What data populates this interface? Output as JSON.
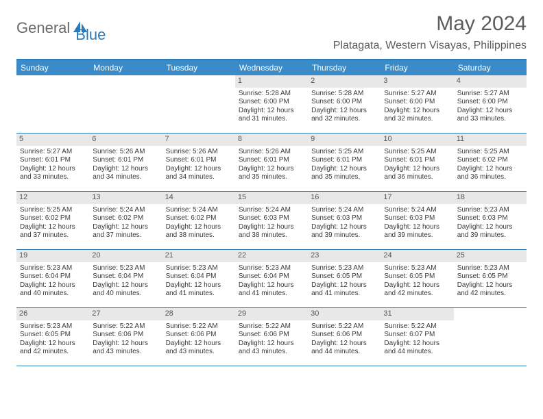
{
  "logo": {
    "part1": "General",
    "part2": "Blue"
  },
  "title": "May 2024",
  "location": "Platagata, Western Visayas, Philippines",
  "colors": {
    "brand_blue": "#2a7ab9",
    "header_blue": "#3b8bc8",
    "daynum_bg": "#e8e8e8",
    "text_gray": "#5c5c5c"
  },
  "weekdays": [
    "Sunday",
    "Monday",
    "Tuesday",
    "Wednesday",
    "Thursday",
    "Friday",
    "Saturday"
  ],
  "weeks": [
    [
      null,
      null,
      null,
      {
        "n": "1",
        "sr": "Sunrise: 5:28 AM",
        "ss": "Sunset: 6:00 PM",
        "d1": "Daylight: 12 hours",
        "d2": "and 31 minutes."
      },
      {
        "n": "2",
        "sr": "Sunrise: 5:28 AM",
        "ss": "Sunset: 6:00 PM",
        "d1": "Daylight: 12 hours",
        "d2": "and 32 minutes."
      },
      {
        "n": "3",
        "sr": "Sunrise: 5:27 AM",
        "ss": "Sunset: 6:00 PM",
        "d1": "Daylight: 12 hours",
        "d2": "and 32 minutes."
      },
      {
        "n": "4",
        "sr": "Sunrise: 5:27 AM",
        "ss": "Sunset: 6:00 PM",
        "d1": "Daylight: 12 hours",
        "d2": "and 33 minutes."
      }
    ],
    [
      {
        "n": "5",
        "sr": "Sunrise: 5:27 AM",
        "ss": "Sunset: 6:01 PM",
        "d1": "Daylight: 12 hours",
        "d2": "and 33 minutes."
      },
      {
        "n": "6",
        "sr": "Sunrise: 5:26 AM",
        "ss": "Sunset: 6:01 PM",
        "d1": "Daylight: 12 hours",
        "d2": "and 34 minutes."
      },
      {
        "n": "7",
        "sr": "Sunrise: 5:26 AM",
        "ss": "Sunset: 6:01 PM",
        "d1": "Daylight: 12 hours",
        "d2": "and 34 minutes."
      },
      {
        "n": "8",
        "sr": "Sunrise: 5:26 AM",
        "ss": "Sunset: 6:01 PM",
        "d1": "Daylight: 12 hours",
        "d2": "and 35 minutes."
      },
      {
        "n": "9",
        "sr": "Sunrise: 5:25 AM",
        "ss": "Sunset: 6:01 PM",
        "d1": "Daylight: 12 hours",
        "d2": "and 35 minutes."
      },
      {
        "n": "10",
        "sr": "Sunrise: 5:25 AM",
        "ss": "Sunset: 6:01 PM",
        "d1": "Daylight: 12 hours",
        "d2": "and 36 minutes."
      },
      {
        "n": "11",
        "sr": "Sunrise: 5:25 AM",
        "ss": "Sunset: 6:02 PM",
        "d1": "Daylight: 12 hours",
        "d2": "and 36 minutes."
      }
    ],
    [
      {
        "n": "12",
        "sr": "Sunrise: 5:25 AM",
        "ss": "Sunset: 6:02 PM",
        "d1": "Daylight: 12 hours",
        "d2": "and 37 minutes."
      },
      {
        "n": "13",
        "sr": "Sunrise: 5:24 AM",
        "ss": "Sunset: 6:02 PM",
        "d1": "Daylight: 12 hours",
        "d2": "and 37 minutes."
      },
      {
        "n": "14",
        "sr": "Sunrise: 5:24 AM",
        "ss": "Sunset: 6:02 PM",
        "d1": "Daylight: 12 hours",
        "d2": "and 38 minutes."
      },
      {
        "n": "15",
        "sr": "Sunrise: 5:24 AM",
        "ss": "Sunset: 6:03 PM",
        "d1": "Daylight: 12 hours",
        "d2": "and 38 minutes."
      },
      {
        "n": "16",
        "sr": "Sunrise: 5:24 AM",
        "ss": "Sunset: 6:03 PM",
        "d1": "Daylight: 12 hours",
        "d2": "and 39 minutes."
      },
      {
        "n": "17",
        "sr": "Sunrise: 5:24 AM",
        "ss": "Sunset: 6:03 PM",
        "d1": "Daylight: 12 hours",
        "d2": "and 39 minutes."
      },
      {
        "n": "18",
        "sr": "Sunrise: 5:23 AM",
        "ss": "Sunset: 6:03 PM",
        "d1": "Daylight: 12 hours",
        "d2": "and 39 minutes."
      }
    ],
    [
      {
        "n": "19",
        "sr": "Sunrise: 5:23 AM",
        "ss": "Sunset: 6:04 PM",
        "d1": "Daylight: 12 hours",
        "d2": "and 40 minutes."
      },
      {
        "n": "20",
        "sr": "Sunrise: 5:23 AM",
        "ss": "Sunset: 6:04 PM",
        "d1": "Daylight: 12 hours",
        "d2": "and 40 minutes."
      },
      {
        "n": "21",
        "sr": "Sunrise: 5:23 AM",
        "ss": "Sunset: 6:04 PM",
        "d1": "Daylight: 12 hours",
        "d2": "and 41 minutes."
      },
      {
        "n": "22",
        "sr": "Sunrise: 5:23 AM",
        "ss": "Sunset: 6:04 PM",
        "d1": "Daylight: 12 hours",
        "d2": "and 41 minutes."
      },
      {
        "n": "23",
        "sr": "Sunrise: 5:23 AM",
        "ss": "Sunset: 6:05 PM",
        "d1": "Daylight: 12 hours",
        "d2": "and 41 minutes."
      },
      {
        "n": "24",
        "sr": "Sunrise: 5:23 AM",
        "ss": "Sunset: 6:05 PM",
        "d1": "Daylight: 12 hours",
        "d2": "and 42 minutes."
      },
      {
        "n": "25",
        "sr": "Sunrise: 5:23 AM",
        "ss": "Sunset: 6:05 PM",
        "d1": "Daylight: 12 hours",
        "d2": "and 42 minutes."
      }
    ],
    [
      {
        "n": "26",
        "sr": "Sunrise: 5:23 AM",
        "ss": "Sunset: 6:05 PM",
        "d1": "Daylight: 12 hours",
        "d2": "and 42 minutes."
      },
      {
        "n": "27",
        "sr": "Sunrise: 5:22 AM",
        "ss": "Sunset: 6:06 PM",
        "d1": "Daylight: 12 hours",
        "d2": "and 43 minutes."
      },
      {
        "n": "28",
        "sr": "Sunrise: 5:22 AM",
        "ss": "Sunset: 6:06 PM",
        "d1": "Daylight: 12 hours",
        "d2": "and 43 minutes."
      },
      {
        "n": "29",
        "sr": "Sunrise: 5:22 AM",
        "ss": "Sunset: 6:06 PM",
        "d1": "Daylight: 12 hours",
        "d2": "and 43 minutes."
      },
      {
        "n": "30",
        "sr": "Sunrise: 5:22 AM",
        "ss": "Sunset: 6:06 PM",
        "d1": "Daylight: 12 hours",
        "d2": "and 44 minutes."
      },
      {
        "n": "31",
        "sr": "Sunrise: 5:22 AM",
        "ss": "Sunset: 6:07 PM",
        "d1": "Daylight: 12 hours",
        "d2": "and 44 minutes."
      },
      null
    ]
  ]
}
